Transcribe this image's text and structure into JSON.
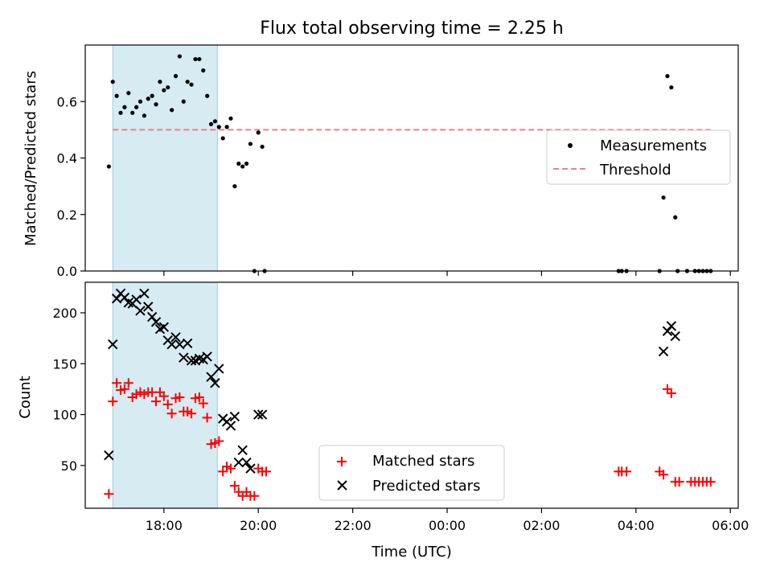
{
  "chart_data": [
    {
      "type": "scatter",
      "title": "Flux total observing time = 2.25 h",
      "xlabel": "",
      "ylabel": "Matched/Predicted stars",
      "ylim": [
        0,
        0.8
      ],
      "yticks": [
        "0.0",
        "0.2",
        "0.4",
        "0.6"
      ],
      "shaded_span": [
        "16:55",
        "19:08"
      ],
      "threshold": {
        "name": "Threshold",
        "value": 0.5,
        "x_range": [
          "16:55",
          "05:35"
        ],
        "color": "#f08080"
      },
      "legend": "right",
      "series": [
        {
          "name": "Measurements",
          "color": "#000000",
          "points": [
            [
              "16:50",
              0.37
            ],
            [
              "16:55",
              0.67
            ],
            [
              "17:00",
              0.62
            ],
            [
              "17:05",
              0.56
            ],
            [
              "17:10",
              0.58
            ],
            [
              "17:15",
              0.63
            ],
            [
              "17:20",
              0.56
            ],
            [
              "17:25",
              0.58
            ],
            [
              "17:30",
              0.6
            ],
            [
              "17:35",
              0.55
            ],
            [
              "17:40",
              0.61
            ],
            [
              "17:45",
              0.62
            ],
            [
              "17:50",
              0.59
            ],
            [
              "17:55",
              0.67
            ],
            [
              "18:00",
              0.64
            ],
            [
              "18:05",
              0.65
            ],
            [
              "18:10",
              0.57
            ],
            [
              "18:15",
              0.69
            ],
            [
              "18:20",
              0.76
            ],
            [
              "18:25",
              0.6
            ],
            [
              "18:30",
              0.67
            ],
            [
              "18:35",
              0.66
            ],
            [
              "18:40",
              0.75
            ],
            [
              "18:45",
              0.75
            ],
            [
              "18:50",
              0.71
            ],
            [
              "18:55",
              0.62
            ],
            [
              "19:00",
              0.52
            ],
            [
              "19:05",
              0.53
            ],
            [
              "19:10",
              0.51
            ],
            [
              "19:15",
              0.47
            ],
            [
              "19:20",
              0.51
            ],
            [
              "19:25",
              0.54
            ],
            [
              "19:30",
              0.3
            ],
            [
              "19:35",
              0.38
            ],
            [
              "19:40",
              0.37
            ],
            [
              "19:45",
              0.38
            ],
            [
              "19:50",
              0.45
            ],
            [
              "19:55",
              0.0
            ],
            [
              "20:00",
              0.49
            ],
            [
              "20:05",
              0.44
            ],
            [
              "20:08",
              0.0
            ],
            [
              "03:38",
              0.0
            ],
            [
              "03:42",
              0.0
            ],
            [
              "03:48",
              0.0
            ],
            [
              "04:30",
              0.0
            ],
            [
              "04:35",
              0.26
            ],
            [
              "04:40",
              0.69
            ],
            [
              "04:45",
              0.65
            ],
            [
              "04:50",
              0.19
            ],
            [
              "04:53",
              0.0
            ],
            [
              "05:05",
              0.0
            ],
            [
              "05:15",
              0.0
            ],
            [
              "05:20",
              0.0
            ],
            [
              "05:25",
              0.0
            ],
            [
              "05:30",
              0.0
            ],
            [
              "05:35",
              0.0
            ]
          ]
        }
      ]
    },
    {
      "type": "scatter",
      "title": "",
      "xlabel": "Time (UTC)",
      "ylabel": "Count",
      "ylim": [
        8,
        230
      ],
      "yticks": [
        "50",
        "100",
        "150",
        "200"
      ],
      "xticks": [
        "18:00",
        "20:00",
        "22:00",
        "00:00",
        "02:00",
        "04:00",
        "06:00"
      ],
      "shaded_span": [
        "16:55",
        "19:08"
      ],
      "legend": "bottom-center",
      "series": [
        {
          "name": "Matched stars",
          "color": "#ff0000",
          "marker": "+",
          "points": [
            [
              "16:50",
              22
            ],
            [
              "16:55",
              113
            ],
            [
              "17:00",
              131
            ],
            [
              "17:05",
              124
            ],
            [
              "17:10",
              125
            ],
            [
              "17:15",
              131
            ],
            [
              "17:20",
              117
            ],
            [
              "17:25",
              120
            ],
            [
              "17:30",
              122
            ],
            [
              "17:35",
              120
            ],
            [
              "17:40",
              122
            ],
            [
              "17:45",
              122
            ],
            [
              "17:50",
              113
            ],
            [
              "17:55",
              122
            ],
            [
              "18:00",
              118
            ],
            [
              "18:05",
              110
            ],
            [
              "18:10",
              101
            ],
            [
              "18:15",
              116
            ],
            [
              "18:20",
              117
            ],
            [
              "18:25",
              103
            ],
            [
              "18:30",
              103
            ],
            [
              "18:35",
              101
            ],
            [
              "18:40",
              116
            ],
            [
              "18:45",
              117
            ],
            [
              "18:50",
              111
            ],
            [
              "18:55",
              97
            ],
            [
              "19:00",
              71
            ],
            [
              "19:05",
              72
            ],
            [
              "19:10",
              74
            ],
            [
              "19:15",
              44
            ],
            [
              "19:20",
              49
            ],
            [
              "19:25",
              47
            ],
            [
              "19:30",
              30
            ],
            [
              "19:35",
              24
            ],
            [
              "19:40",
              20
            ],
            [
              "19:45",
              24
            ],
            [
              "19:50",
              20
            ],
            [
              "19:55",
              20
            ],
            [
              "20:00",
              47
            ],
            [
              "20:05",
              44
            ],
            [
              "20:10",
              44
            ],
            [
              "03:38",
              44
            ],
            [
              "03:42",
              44
            ],
            [
              "03:48",
              44
            ],
            [
              "04:30",
              44
            ],
            [
              "04:35",
              41
            ],
            [
              "04:40",
              125
            ],
            [
              "04:45",
              121
            ],
            [
              "04:50",
              34
            ],
            [
              "04:55",
              34
            ],
            [
              "05:10",
              34
            ],
            [
              "05:15",
              34
            ],
            [
              "05:20",
              34
            ],
            [
              "05:25",
              34
            ],
            [
              "05:30",
              34
            ],
            [
              "05:35",
              34
            ]
          ]
        },
        {
          "name": "Predicted stars",
          "color": "#000000",
          "marker": "x",
          "points": [
            [
              "16:50",
              60
            ],
            [
              "16:55",
              169
            ],
            [
              "17:00",
              214
            ],
            [
              "17:05",
              219
            ],
            [
              "17:10",
              215
            ],
            [
              "17:15",
              210
            ],
            [
              "17:20",
              209
            ],
            [
              "17:25",
              213
            ],
            [
              "17:30",
              202
            ],
            [
              "17:35",
              219
            ],
            [
              "17:40",
              206
            ],
            [
              "17:45",
              196
            ],
            [
              "17:50",
              191
            ],
            [
              "17:55",
              184
            ],
            [
              "18:00",
              186
            ],
            [
              "18:05",
              173
            ],
            [
              "18:10",
              169
            ],
            [
              "18:15",
              176
            ],
            [
              "18:20",
              169
            ],
            [
              "18:25",
              156
            ],
            [
              "18:30",
              170
            ],
            [
              "18:35",
              153
            ],
            [
              "18:40",
              153
            ],
            [
              "18:45",
              155
            ],
            [
              "18:50",
              154
            ],
            [
              "18:55",
              157
            ],
            [
              "19:00",
              137
            ],
            [
              "19:05",
              131
            ],
            [
              "19:10",
              145
            ],
            [
              "19:15",
              96
            ],
            [
              "19:20",
              93
            ],
            [
              "19:25",
              89
            ],
            [
              "19:30",
              98
            ],
            [
              "19:35",
              53
            ],
            [
              "19:40",
              65
            ],
            [
              "19:45",
              53
            ],
            [
              "19:50",
              47
            ],
            [
              "20:00",
              100
            ],
            [
              "20:05",
              100
            ],
            [
              "04:35",
              162
            ],
            [
              "04:40",
              182
            ],
            [
              "04:45",
              187
            ],
            [
              "04:50",
              177
            ]
          ]
        }
      ]
    }
  ]
}
